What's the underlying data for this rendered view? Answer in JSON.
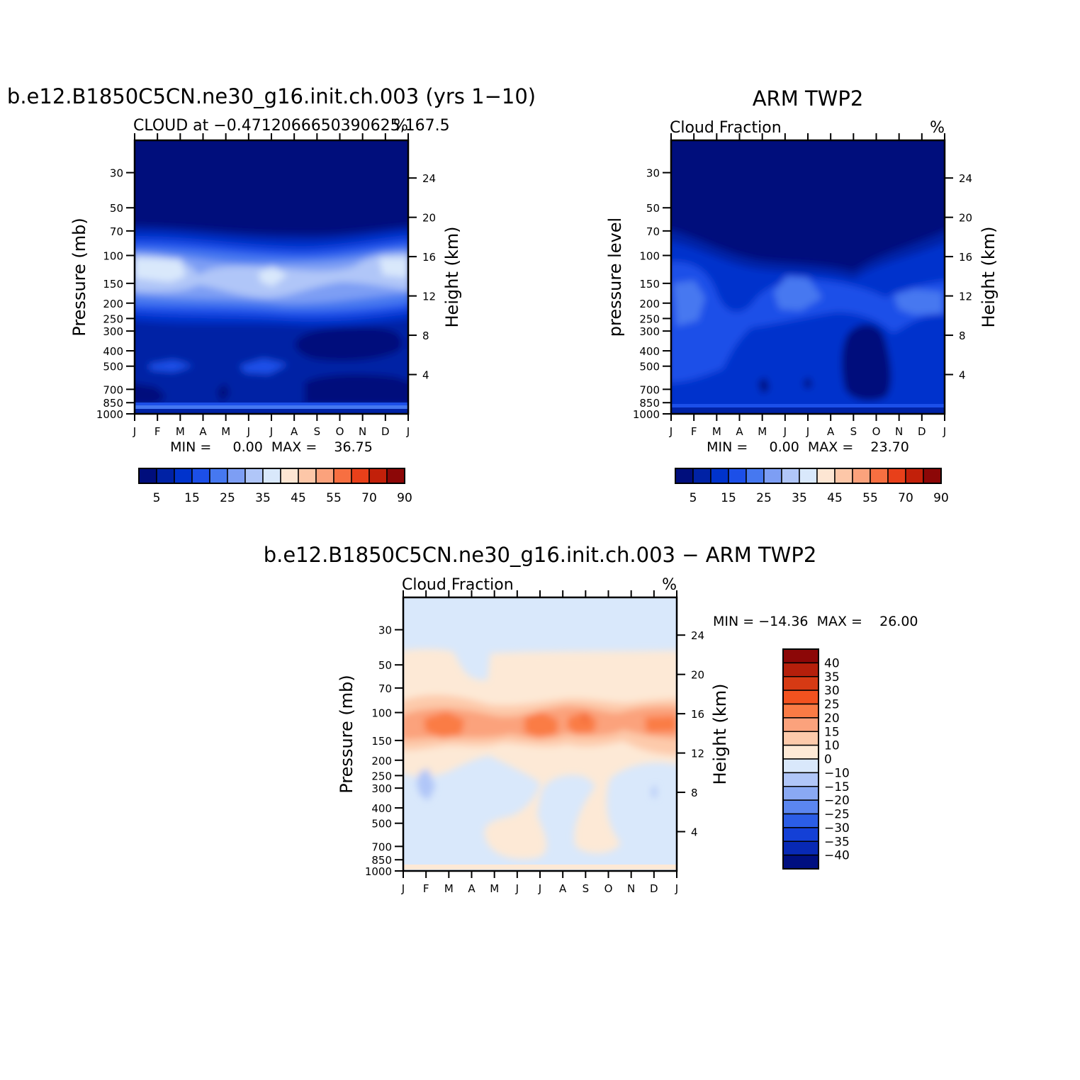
{
  "chart_data": [
    {
      "type": "heatmap",
      "title": "b.e12.B1850C5CN.ne30_g16.init.ch.003 (yrs 1−10)",
      "subtitle": "CLOUD at −0.47120666503906 25,167.5",
      "subtitle_text": "CLOUD at −0.4712066650390625,167.5",
      "units": "%",
      "ylabel": "Pressure (mb)",
      "y2label": "Height (km)",
      "x_ticks": [
        "J",
        "F",
        "M",
        "A",
        "M",
        "J",
        "J",
        "A",
        "S",
        "O",
        "N",
        "D",
        "J"
      ],
      "y_ticks": [
        "30",
        "50",
        "70",
        "100",
        "150",
        "200",
        "250",
        "300",
        "400",
        "500",
        "700",
        "850",
        "1000"
      ],
      "y2_ticks": [
        "24",
        "20",
        "16",
        "12",
        "8",
        "4"
      ],
      "stats": "MIN =     0.00  MAX =    36.75",
      "colorbar_labels": [
        "5",
        "15",
        "25",
        "35",
        "45",
        "55",
        "70",
        "90"
      ],
      "data_min": 0.0,
      "data_max": 36.75
    },
    {
      "type": "heatmap",
      "title": "ARM TWP2",
      "subtitle": "Cloud Fraction",
      "units": "%",
      "ylabel": "pressure level",
      "y2label": "Height (km)",
      "x_ticks": [
        "J",
        "F",
        "M",
        "A",
        "M",
        "J",
        "J",
        "A",
        "S",
        "O",
        "N",
        "D",
        "J"
      ],
      "y_ticks": [
        "30",
        "50",
        "70",
        "100",
        "150",
        "200",
        "250",
        "300",
        "400",
        "500",
        "700",
        "850",
        "1000"
      ],
      "y2_ticks": [
        "24",
        "20",
        "16",
        "12",
        "8",
        "4"
      ],
      "stats": "MIN =     0.00  MAX =    23.70",
      "colorbar_labels": [
        "5",
        "15",
        "25",
        "35",
        "45",
        "55",
        "70",
        "90"
      ],
      "data_min": 0.0,
      "data_max": 23.7
    },
    {
      "type": "heatmap",
      "title": "b.e12.B1850C5CN.ne30_g16.init.ch.003 − ARM TWP2",
      "subtitle": "Cloud Fraction",
      "units": "%",
      "ylabel": "Pressure (mb)",
      "y2label": "Height (km)",
      "x_ticks": [
        "J",
        "F",
        "M",
        "A",
        "M",
        "J",
        "J",
        "A",
        "S",
        "O",
        "N",
        "D",
        "J"
      ],
      "y_ticks": [
        "30",
        "50",
        "70",
        "100",
        "150",
        "200",
        "250",
        "300",
        "400",
        "500",
        "700",
        "850",
        "1000"
      ],
      "y2_ticks": [
        "24",
        "20",
        "16",
        "12",
        "8",
        "4"
      ],
      "stats": "MIN = −14.36  MAX =    26.00",
      "colorbar_labels": [
        "40",
        "35",
        "30",
        "25",
        "20",
        "15",
        "10",
        "0",
        "−10",
        "−15",
        "−20",
        "−25",
        "−30",
        "−35",
        "−40"
      ],
      "data_min": -14.36,
      "data_max": 26.0
    }
  ],
  "colors": {
    "abs_scale": [
      "#000e7c",
      "#0022a5",
      "#0033cc",
      "#1c4fe8",
      "#4678f0",
      "#7d9ef4",
      "#b0c6f8",
      "#d9e8fb",
      "#fde6d3",
      "#fdc7a8",
      "#fba27c",
      "#f76f41",
      "#e8401a",
      "#c2200a",
      "#8c0707"
    ],
    "diff_scale": [
      "#8c0707",
      "#b51f0b",
      "#d63a14",
      "#f2521f",
      "#fa7b45",
      "#fba27c",
      "#fdcaab",
      "#fde9d6",
      "#d9e8fb",
      "#b0c6f8",
      "#8aa9f3",
      "#5b86ef",
      "#2b5de6",
      "#1440d6",
      "#0829b5",
      "#000f80"
    ]
  }
}
